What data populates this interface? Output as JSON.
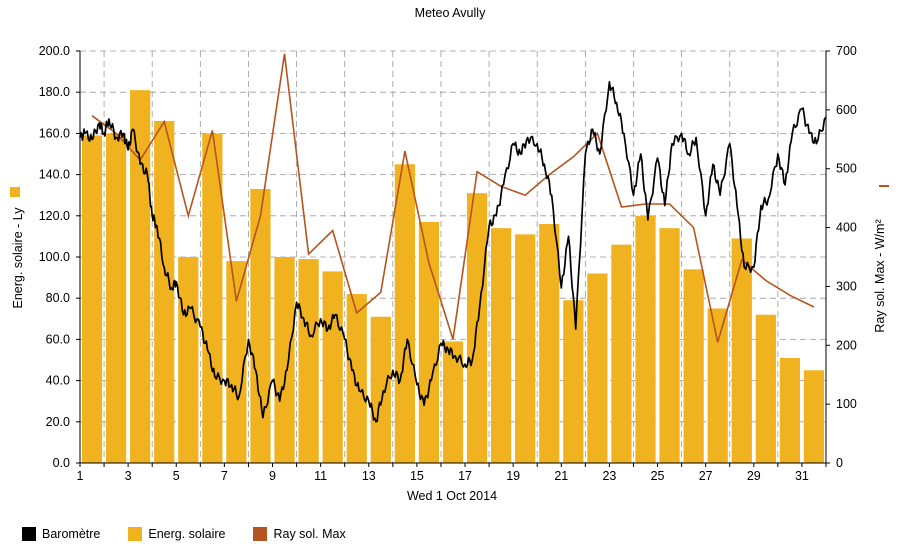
{
  "chart_data": {
    "type": "bar+line",
    "title": "Meteo  Avully",
    "xlabel": "Wed 1 Oct 2014",
    "ylabel_left": "Energ. solaire - Ly",
    "ylabel_right": "Ray sol. Max - W/m²",
    "x_ticks": [
      "1",
      "3",
      "5",
      "7",
      "9",
      "11",
      "13",
      "15",
      "17",
      "19",
      "21",
      "23",
      "25",
      "27",
      "29",
      "31"
    ],
    "y_left_ticks": [
      "0.0",
      "20.0",
      "40.0",
      "60.0",
      "80.0",
      "100.0",
      "120.0",
      "140.0",
      "160.0",
      "180.0",
      "200.0"
    ],
    "y_right_ticks": [
      "0",
      "100",
      "200",
      "300",
      "400",
      "500",
      "600",
      "700"
    ],
    "ylim_left": [
      0,
      200
    ],
    "ylim_right": [
      0,
      700
    ],
    "xlim": [
      1,
      32
    ],
    "grid": true,
    "colors": {
      "bar": "#f0b21f",
      "radiation": "#b5541e",
      "barometer": "#000000"
    },
    "legend": {
      "position": "bottom",
      "items": [
        "Baromètre",
        "Energ. solaire",
        "Ray sol. Max"
      ]
    },
    "series": [
      {
        "name": "Energ. solaire",
        "kind": "bar",
        "axis": "left",
        "days": [
          1,
          2,
          3,
          4,
          5,
          6,
          7,
          8,
          9,
          10,
          11,
          12,
          13,
          14,
          15,
          16,
          17,
          18,
          19,
          20,
          21,
          22,
          23,
          24,
          25,
          26,
          27,
          28,
          29,
          30,
          31
        ],
        "values": [
          159,
          160,
          181,
          166,
          100,
          160,
          98,
          133,
          100,
          99,
          93,
          82,
          71,
          145,
          117,
          59,
          131,
          114,
          111,
          116,
          79,
          92,
          106,
          120,
          114,
          94,
          75,
          109,
          72,
          51,
          45
        ]
      },
      {
        "name": "Ray sol. Max",
        "kind": "line",
        "axis": "right",
        "x": [
          1.5,
          2.5,
          3.5,
          4.5,
          5.5,
          6.5,
          7.5,
          8.5,
          9.5,
          10.5,
          11.5,
          12.5,
          13.5,
          14.5,
          15.5,
          16.5,
          17.5,
          18.5,
          19.5,
          20.5,
          21.5,
          22.5,
          23.5,
          24.5,
          25.5,
          26.5,
          27.5,
          28.5,
          29.5,
          30.5,
          31.5
        ],
        "values": [
          590,
          560,
          515,
          580,
          420,
          565,
          275,
          420,
          695,
          355,
          395,
          255,
          290,
          530,
          340,
          210,
          495,
          470,
          455,
          490,
          520,
          560,
          435,
          440,
          440,
          400,
          205,
          345,
          310,
          285,
          265
        ]
      },
      {
        "name": "Baromètre",
        "kind": "line",
        "axis": "left",
        "x": [
          1.0,
          1.2,
          1.5,
          1.8,
          2.0,
          2.2,
          2.5,
          2.8,
          3.0,
          3.2,
          3.5,
          3.8,
          4.0,
          4.2,
          4.5,
          4.8,
          5.0,
          5.3,
          5.6,
          6.0,
          6.3,
          6.6,
          7.0,
          7.3,
          7.6,
          8.0,
          8.3,
          8.6,
          9.0,
          9.3,
          9.6,
          10.0,
          10.3,
          10.6,
          11.0,
          11.3,
          11.6,
          12.0,
          12.3,
          12.6,
          13.0,
          13.3,
          13.6,
          14.0,
          14.3,
          14.6,
          15.0,
          15.3,
          15.6,
          16.0,
          16.3,
          16.6,
          17.0,
          17.3,
          17.6,
          18.0,
          18.3,
          18.6,
          19.0,
          19.3,
          19.6,
          20.0,
          20.3,
          20.6,
          21.0,
          21.3,
          21.6,
          22.0,
          22.3,
          22.6,
          23.0,
          23.3,
          23.6,
          24.0,
          24.3,
          24.6,
          25.0,
          25.3,
          25.6,
          26.0,
          26.3,
          26.6,
          27.0,
          27.3,
          27.6,
          28.0,
          28.3,
          28.6,
          29.0,
          29.3,
          29.6,
          30.0,
          30.3,
          30.6,
          31.0,
          31.3,
          31.6,
          32.0
        ],
        "values": [
          158,
          160,
          157,
          165,
          160,
          167,
          158,
          160,
          152,
          162,
          145,
          140,
          120,
          115,
          95,
          85,
          88,
          72,
          75,
          66,
          55,
          42,
          40,
          38,
          32,
          60,
          45,
          22,
          40,
          30,
          45,
          78,
          70,
          62,
          70,
          65,
          72,
          60,
          45,
          35,
          30,
          20,
          35,
          45,
          40,
          60,
          38,
          28,
          40,
          58,
          55,
          52,
          48,
          50,
          75,
          115,
          120,
          135,
          155,
          150,
          158,
          155,
          145,
          130,
          85,
          110,
          65,
          150,
          162,
          150,
          185,
          175,
          160,
          130,
          150,
          118,
          148,
          125,
          155,
          160,
          150,
          158,
          120,
          145,
          130,
          155,
          125,
          95,
          95,
          125,
          128,
          150,
          135,
          160,
          172,
          160,
          155,
          168
        ]
      }
    ]
  }
}
